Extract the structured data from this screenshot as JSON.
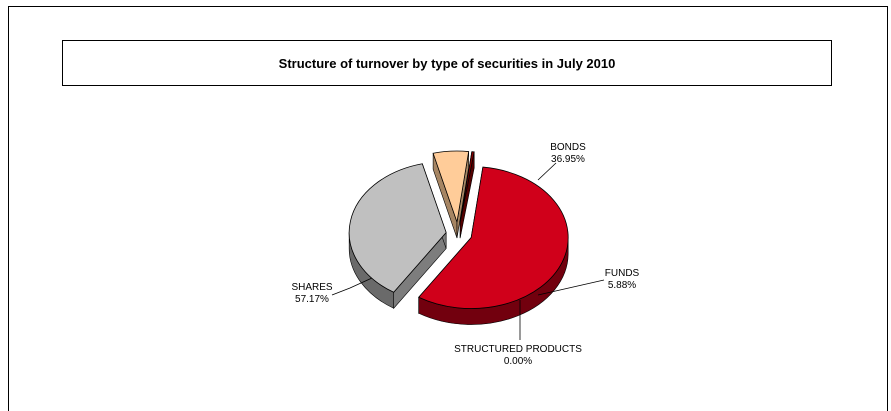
{
  "chart_data": {
    "type": "pie",
    "title": "Structure of turnover by type of securities in July 2010",
    "categories": [
      "SHARES",
      "BONDS",
      "FUNDS",
      "STRUCTURED PRODUCTS"
    ],
    "values": [
      57.17,
      36.95,
      5.88,
      0.0
    ],
    "value_labels": [
      "57.17%",
      "36.95%",
      "5.88%",
      "0.00%"
    ],
    "colors": {
      "SHARES": "#d0001a",
      "BONDS": "#c0c0c0",
      "FUNDS": "#ffcc99",
      "STRUCTURED PRODUCTS": "#800000"
    },
    "style": "3d-exploded-pie",
    "legend": "none"
  }
}
